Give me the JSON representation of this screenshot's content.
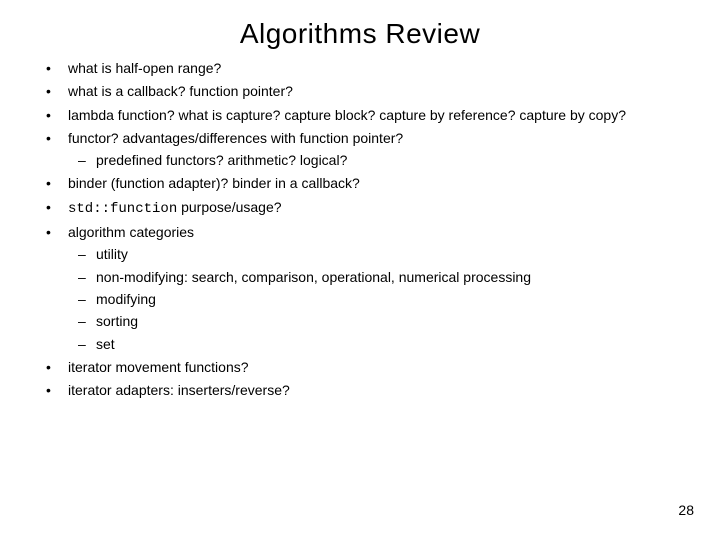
{
  "title": "Algorithms  Review",
  "colors": {
    "background": "#ffffff",
    "text": "#000000"
  },
  "typography": {
    "title_fontsize": 28,
    "body_fontsize": 14,
    "font_family": "Arial"
  },
  "bullets": {
    "b1": "what is half-open range?",
    "b2": "what is a callback? function pointer?",
    "b3": "lambda function? what is capture? capture block? capture by reference? capture by copy?",
    "b4": "functor? advantages/differences with function pointer?",
    "b4_sub1": "predefined functors? arithmetic? logical?",
    "b5": "binder (function adapter)? binder in a callback?",
    "b6_code": "std::function",
    "b6_rest": " purpose/usage?",
    "b7": "algorithm categories",
    "b7_sub1": "utility",
    "b7_sub2": "non-modifying: search,  comparison,  operational, numerical processing",
    "b7_sub3": "modifying",
    "b7_sub4": "sorting",
    "b7_sub5": "set",
    "b8": "iterator movement functions?",
    "b9": "iterator adapters: inserters/reverse?"
  },
  "page_number": "28"
}
